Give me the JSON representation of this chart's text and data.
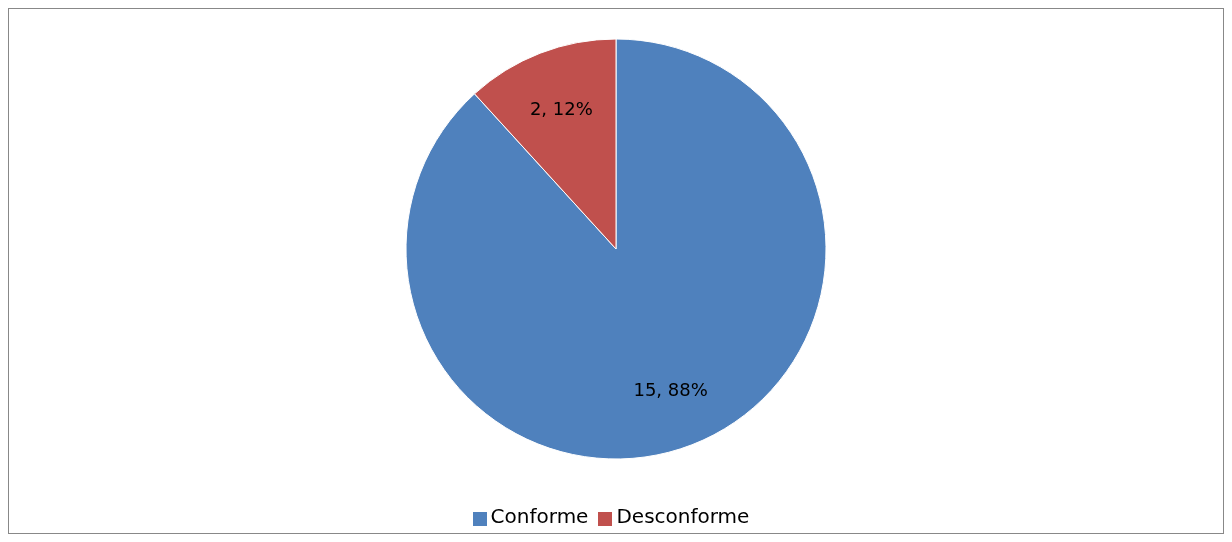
{
  "chart_data": {
    "type": "pie",
    "categories": [
      "Conforme",
      "Desconforme"
    ],
    "values": [
      15,
      2
    ],
    "colors": [
      "#4f81bd",
      "#c0504d"
    ],
    "value_labels": [
      "15, 88%",
      "2, 12%"
    ],
    "legend": "bottom"
  }
}
